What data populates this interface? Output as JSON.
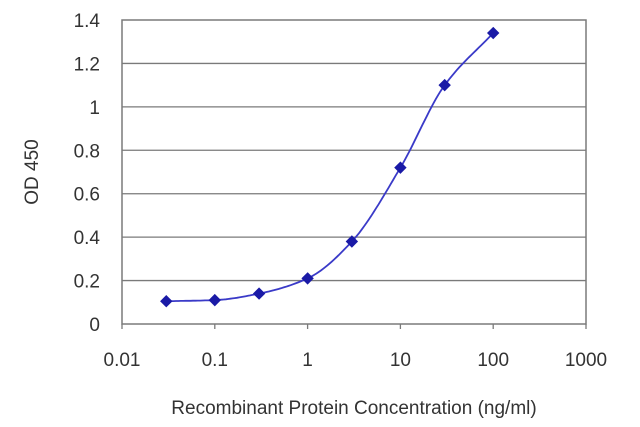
{
  "chart_data": {
    "type": "scatter",
    "xlabel": "Recombinant Protein Concentration (ng/ml)",
    "ylabel": "OD 450",
    "xscale": "log",
    "xlim": [
      0.01,
      1000
    ],
    "ylim": [
      0,
      1.4
    ],
    "grid": "horizontal",
    "x_ticks": [
      "0.01",
      "0.1",
      "1",
      "10",
      "100",
      "1000"
    ],
    "y_ticks": [
      "0",
      "0.2",
      "0.4",
      "0.6",
      "0.8",
      "1",
      "1.2",
      "1.4"
    ],
    "series": [
      {
        "x": [
          0.03,
          0.1,
          0.3,
          1,
          3,
          10,
          30,
          100
        ],
        "y": [
          0.105,
          0.11,
          0.14,
          0.21,
          0.38,
          0.72,
          1.1,
          1.34
        ],
        "fitted_curve": true
      }
    ],
    "colors": {
      "series": "#1a1aa6",
      "curve": "#3a3ac8",
      "grid": "#7a7a7a",
      "text": "#333333"
    }
  }
}
